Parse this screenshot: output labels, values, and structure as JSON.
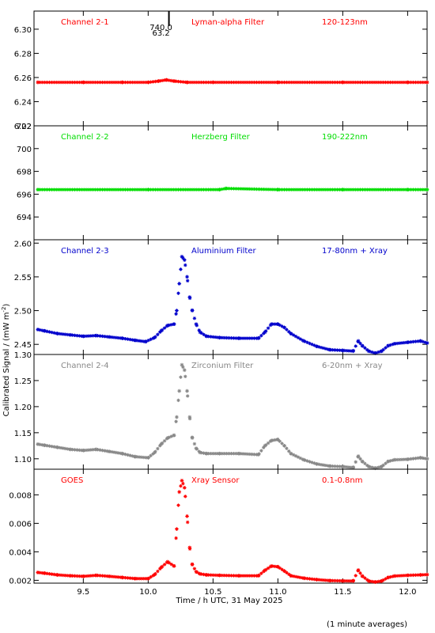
{
  "figure": {
    "y_axis_label": "Calibrated Signal / (mW m",
    "y_axis_label_exp": "-2",
    "y_axis_label_close": ")",
    "x_axis_label": "Time / h UTC, 31 May 2025",
    "footnote": "(1 minute averages)",
    "marker_text_1": "740.0",
    "marker_text_2": "63.2",
    "marker_time": 10.16
  },
  "chart_data": [
    {
      "type": "scatter",
      "channel": "Channel 2-1",
      "filter": "Lyman-alpha Filter",
      "band": "120-123nm",
      "color": "#ff0000",
      "ylim": [
        6.22,
        6.315
      ],
      "yticks": [
        6.22,
        6.24,
        6.26,
        6.28,
        6.3
      ],
      "ytick_labels": [
        "6.22",
        "6.24",
        "6.26",
        "6.28",
        "6.30"
      ],
      "xlim": [
        9.12,
        12.15
      ],
      "xticks": [
        9.5,
        10.0,
        10.5,
        11.0,
        11.5,
        12.0
      ],
      "xtick_labels": [
        "9.5",
        "10.0",
        "10.5",
        "11.0",
        "11.5",
        "12.0"
      ],
      "show_xtick_labels": false,
      "series": [
        {
          "x": [
            9.15,
            9.5,
            9.8,
            10.0,
            10.08,
            10.14,
            10.2,
            10.3,
            10.5,
            11.0,
            11.5,
            12.0,
            12.15
          ],
          "y": [
            6.256,
            6.256,
            6.256,
            6.256,
            6.257,
            6.258,
            6.257,
            6.256,
            6.256,
            6.256,
            6.256,
            6.256,
            6.256
          ]
        }
      ]
    },
    {
      "type": "scatter",
      "channel": "Channel 2-2",
      "filter": "Herzberg Filter",
      "band": "190-222nm",
      "color": "#00dd00",
      "ylim": [
        692.0,
        702.0
      ],
      "yticks": [
        694,
        696,
        698,
        700,
        702
      ],
      "ytick_labels": [
        "694",
        "696",
        "698",
        "700",
        "702"
      ],
      "xlim": [
        9.12,
        12.15
      ],
      "xticks": [
        9.5,
        10.0,
        10.5,
        11.0,
        11.5,
        12.0
      ],
      "xtick_labels": [
        "9.5",
        "10.0",
        "10.5",
        "11.0",
        "11.5",
        "12.0"
      ],
      "show_xtick_labels": false,
      "series": [
        {
          "x": [
            9.15,
            10.0,
            10.55,
            10.6,
            11.0,
            11.5,
            12.0,
            12.15
          ],
          "y": [
            696.4,
            696.4,
            696.4,
            696.5,
            696.4,
            696.4,
            696.4,
            696.4
          ]
        }
      ]
    },
    {
      "type": "scatter",
      "channel": "Channel 2-3",
      "filter": "Aluminium Filter",
      "band": "17-80nm + Xray",
      "color": "#0000cc",
      "ylim": [
        2.435,
        2.605
      ],
      "yticks": [
        2.45,
        2.5,
        2.55,
        2.6
      ],
      "ytick_labels": [
        "2.45",
        "2.50",
        "2.55",
        "2.60"
      ],
      "xlim": [
        9.12,
        12.15
      ],
      "xticks": [
        9.5,
        10.0,
        10.5,
        11.0,
        11.5,
        12.0
      ],
      "xtick_labels": [
        "9.5",
        "10.0",
        "10.5",
        "11.0",
        "11.5",
        "12.0"
      ],
      "show_xtick_labels": false,
      "series": [
        {
          "x": [
            9.15,
            9.2,
            9.3,
            9.4,
            9.5,
            9.6,
            9.7,
            9.8,
            9.9,
            9.98,
            10.05,
            10.1,
            10.15,
            10.2,
            10.22,
            10.24,
            10.26,
            10.28,
            10.3,
            10.32,
            10.34,
            10.37,
            10.4,
            10.45,
            10.55,
            10.7,
            10.85,
            10.9,
            10.95,
            11.0,
            11.05,
            11.1,
            11.2,
            11.3,
            11.4,
            11.5,
            11.58,
            11.62,
            11.65,
            11.7,
            11.75,
            11.8,
            11.85,
            11.9,
            12.0,
            12.1,
            12.15
          ],
          "y": [
            2.472,
            2.47,
            2.466,
            2.464,
            2.462,
            2.463,
            2.461,
            2.459,
            2.456,
            2.454,
            2.46,
            2.47,
            2.478,
            2.48,
            2.5,
            2.54,
            2.58,
            2.575,
            2.55,
            2.52,
            2.5,
            2.48,
            2.468,
            2.462,
            2.46,
            2.459,
            2.459,
            2.468,
            2.48,
            2.48,
            2.475,
            2.466,
            2.455,
            2.447,
            2.442,
            2.441,
            2.44,
            2.455,
            2.448,
            2.44,
            2.437,
            2.44,
            2.448,
            2.451,
            2.453,
            2.455,
            2.452
          ]
        }
      ]
    },
    {
      "type": "scatter",
      "channel": "Channel 2-4",
      "filter": "Zirconium Filter",
      "band": "6-20nm + Xray",
      "color": "#888888",
      "ylim": [
        1.08,
        1.3
      ],
      "yticks": [
        1.1,
        1.15,
        1.2,
        1.25,
        1.3
      ],
      "ytick_labels": [
        "1.10",
        "1.15",
        "1.20",
        "1.25",
        "1.30"
      ],
      "xlim": [
        9.12,
        12.15
      ],
      "xticks": [
        9.5,
        10.0,
        10.5,
        11.0,
        11.5,
        12.0
      ],
      "xtick_labels": [
        "9.5",
        "10.0",
        "10.5",
        "11.0",
        "11.5",
        "12.0"
      ],
      "show_xtick_labels": false,
      "series": [
        {
          "x": [
            9.15,
            9.2,
            9.3,
            9.4,
            9.5,
            9.6,
            9.7,
            9.8,
            9.9,
            10.0,
            10.05,
            10.1,
            10.15,
            10.2,
            10.22,
            10.24,
            10.26,
            10.28,
            10.3,
            10.32,
            10.34,
            10.37,
            10.4,
            10.45,
            10.55,
            10.7,
            10.85,
            10.9,
            10.95,
            11.0,
            11.05,
            11.1,
            11.2,
            11.3,
            11.4,
            11.5,
            11.58,
            11.62,
            11.65,
            11.7,
            11.75,
            11.8,
            11.85,
            11.9,
            12.0,
            12.1,
            12.15
          ],
          "y": [
            1.128,
            1.126,
            1.122,
            1.118,
            1.116,
            1.118,
            1.114,
            1.11,
            1.104,
            1.102,
            1.112,
            1.128,
            1.14,
            1.145,
            1.18,
            1.23,
            1.28,
            1.27,
            1.23,
            1.18,
            1.14,
            1.12,
            1.112,
            1.11,
            1.11,
            1.11,
            1.108,
            1.125,
            1.135,
            1.137,
            1.125,
            1.11,
            1.098,
            1.09,
            1.086,
            1.085,
            1.083,
            1.105,
            1.095,
            1.085,
            1.082,
            1.085,
            1.095,
            1.098,
            1.099,
            1.102,
            1.1
          ]
        }
      ]
    },
    {
      "type": "scatter",
      "channel": "GOES",
      "filter": "Xray Sensor",
      "band": "0.1-0.8nm",
      "color": "#ff0000",
      "ylim": [
        0.0018,
        0.0098
      ],
      "yticks": [
        0.002,
        0.004,
        0.006,
        0.008
      ],
      "ytick_labels": [
        "0.002",
        "0.004",
        "0.006",
        "0.008"
      ],
      "xlim": [
        9.12,
        12.15
      ],
      "xticks": [
        9.5,
        10.0,
        10.5,
        11.0,
        11.5,
        12.0
      ],
      "xtick_labels": [
        "9.5",
        "10.0",
        "10.5",
        "11.0",
        "11.5",
        "12.0"
      ],
      "show_xtick_labels": true,
      "series": [
        {
          "x": [
            9.15,
            9.2,
            9.3,
            9.4,
            9.5,
            9.6,
            9.7,
            9.8,
            9.9,
            10.0,
            10.05,
            10.1,
            10.15,
            10.2,
            10.22,
            10.24,
            10.26,
            10.28,
            10.3,
            10.32,
            10.34,
            10.37,
            10.4,
            10.45,
            10.55,
            10.7,
            10.85,
            10.9,
            10.95,
            11.0,
            11.05,
            11.1,
            11.2,
            11.3,
            11.4,
            11.5,
            11.58,
            11.62,
            11.65,
            11.7,
            11.75,
            11.8,
            11.85,
            11.9,
            12.0,
            12.1,
            12.15
          ],
          "y": [
            0.00255,
            0.0025,
            0.00238,
            0.00232,
            0.00228,
            0.00235,
            0.00228,
            0.0022,
            0.00212,
            0.00212,
            0.0024,
            0.0029,
            0.0033,
            0.003,
            0.0056,
            0.0082,
            0.009,
            0.0085,
            0.0065,
            0.0043,
            0.0031,
            0.0026,
            0.00245,
            0.00238,
            0.00235,
            0.00232,
            0.00232,
            0.0027,
            0.003,
            0.00295,
            0.00265,
            0.00232,
            0.00215,
            0.00205,
            0.00198,
            0.00196,
            0.00195,
            0.00272,
            0.0023,
            0.00195,
            0.00188,
            0.00195,
            0.0022,
            0.0023,
            0.00235,
            0.00238,
            0.0024
          ]
        }
      ]
    }
  ]
}
